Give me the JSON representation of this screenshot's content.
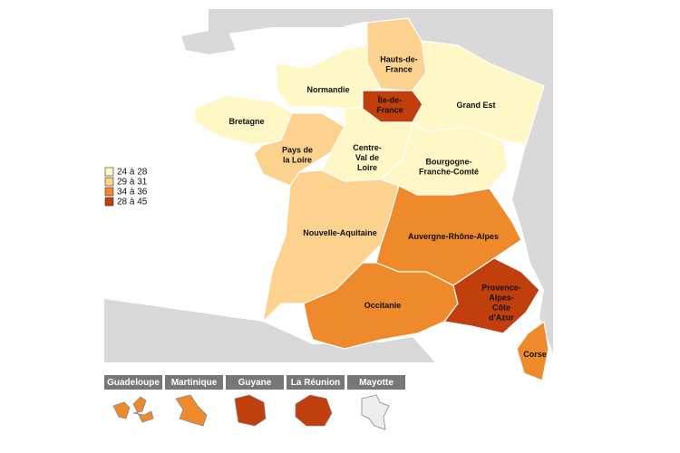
{
  "legend": [
    {
      "label": "24 à 28",
      "color": "#fff7c6"
    },
    {
      "label": "29 à 31",
      "color": "#fdd18e"
    },
    {
      "label": "34 à 36",
      "color": "#ee8a2c"
    },
    {
      "label": "28 à 45",
      "color": "#c13e0d"
    }
  ],
  "regions": [
    {
      "name": "Hauts-de-\nFrance",
      "color": "#fdd18e"
    },
    {
      "name": "Normandie",
      "color": "#fff7c6"
    },
    {
      "name": "Île-de-\nFrance",
      "color": "#c13e0d"
    },
    {
      "name": "Grand Est",
      "color": "#fff7c6"
    },
    {
      "name": "Bretagne",
      "color": "#fff7c6"
    },
    {
      "name": "Pays de\nla Loire",
      "color": "#fdd18e"
    },
    {
      "name": "Centre-\nVal de\nLoire",
      "color": "#fff7c6"
    },
    {
      "name": "Bourgogne-\nFranche-Comté",
      "color": "#fff7c6"
    },
    {
      "name": "Nouvelle-Aquitaine",
      "color": "#fdd18e"
    },
    {
      "name": "Auvergne-Rhône-Alpes",
      "color": "#ee8a2c"
    },
    {
      "name": "Occitanie",
      "color": "#ee8a2c"
    },
    {
      "name": "Provence-\nAlpes-\nCôte\nd'Azur",
      "color": "#c13e0d"
    },
    {
      "name": "Corse",
      "color": "#ee8a2c"
    }
  ],
  "overseas": [
    {
      "name": "Guadeloupe",
      "color": "#ee8a2c"
    },
    {
      "name": "Martinique",
      "color": "#ee8a2c"
    },
    {
      "name": "Guyane",
      "color": "#c13e0d"
    },
    {
      "name": "La Réunion",
      "color": "#c13e0d"
    },
    {
      "name": "Mayotte",
      "color": "#eeeeee"
    }
  ]
}
